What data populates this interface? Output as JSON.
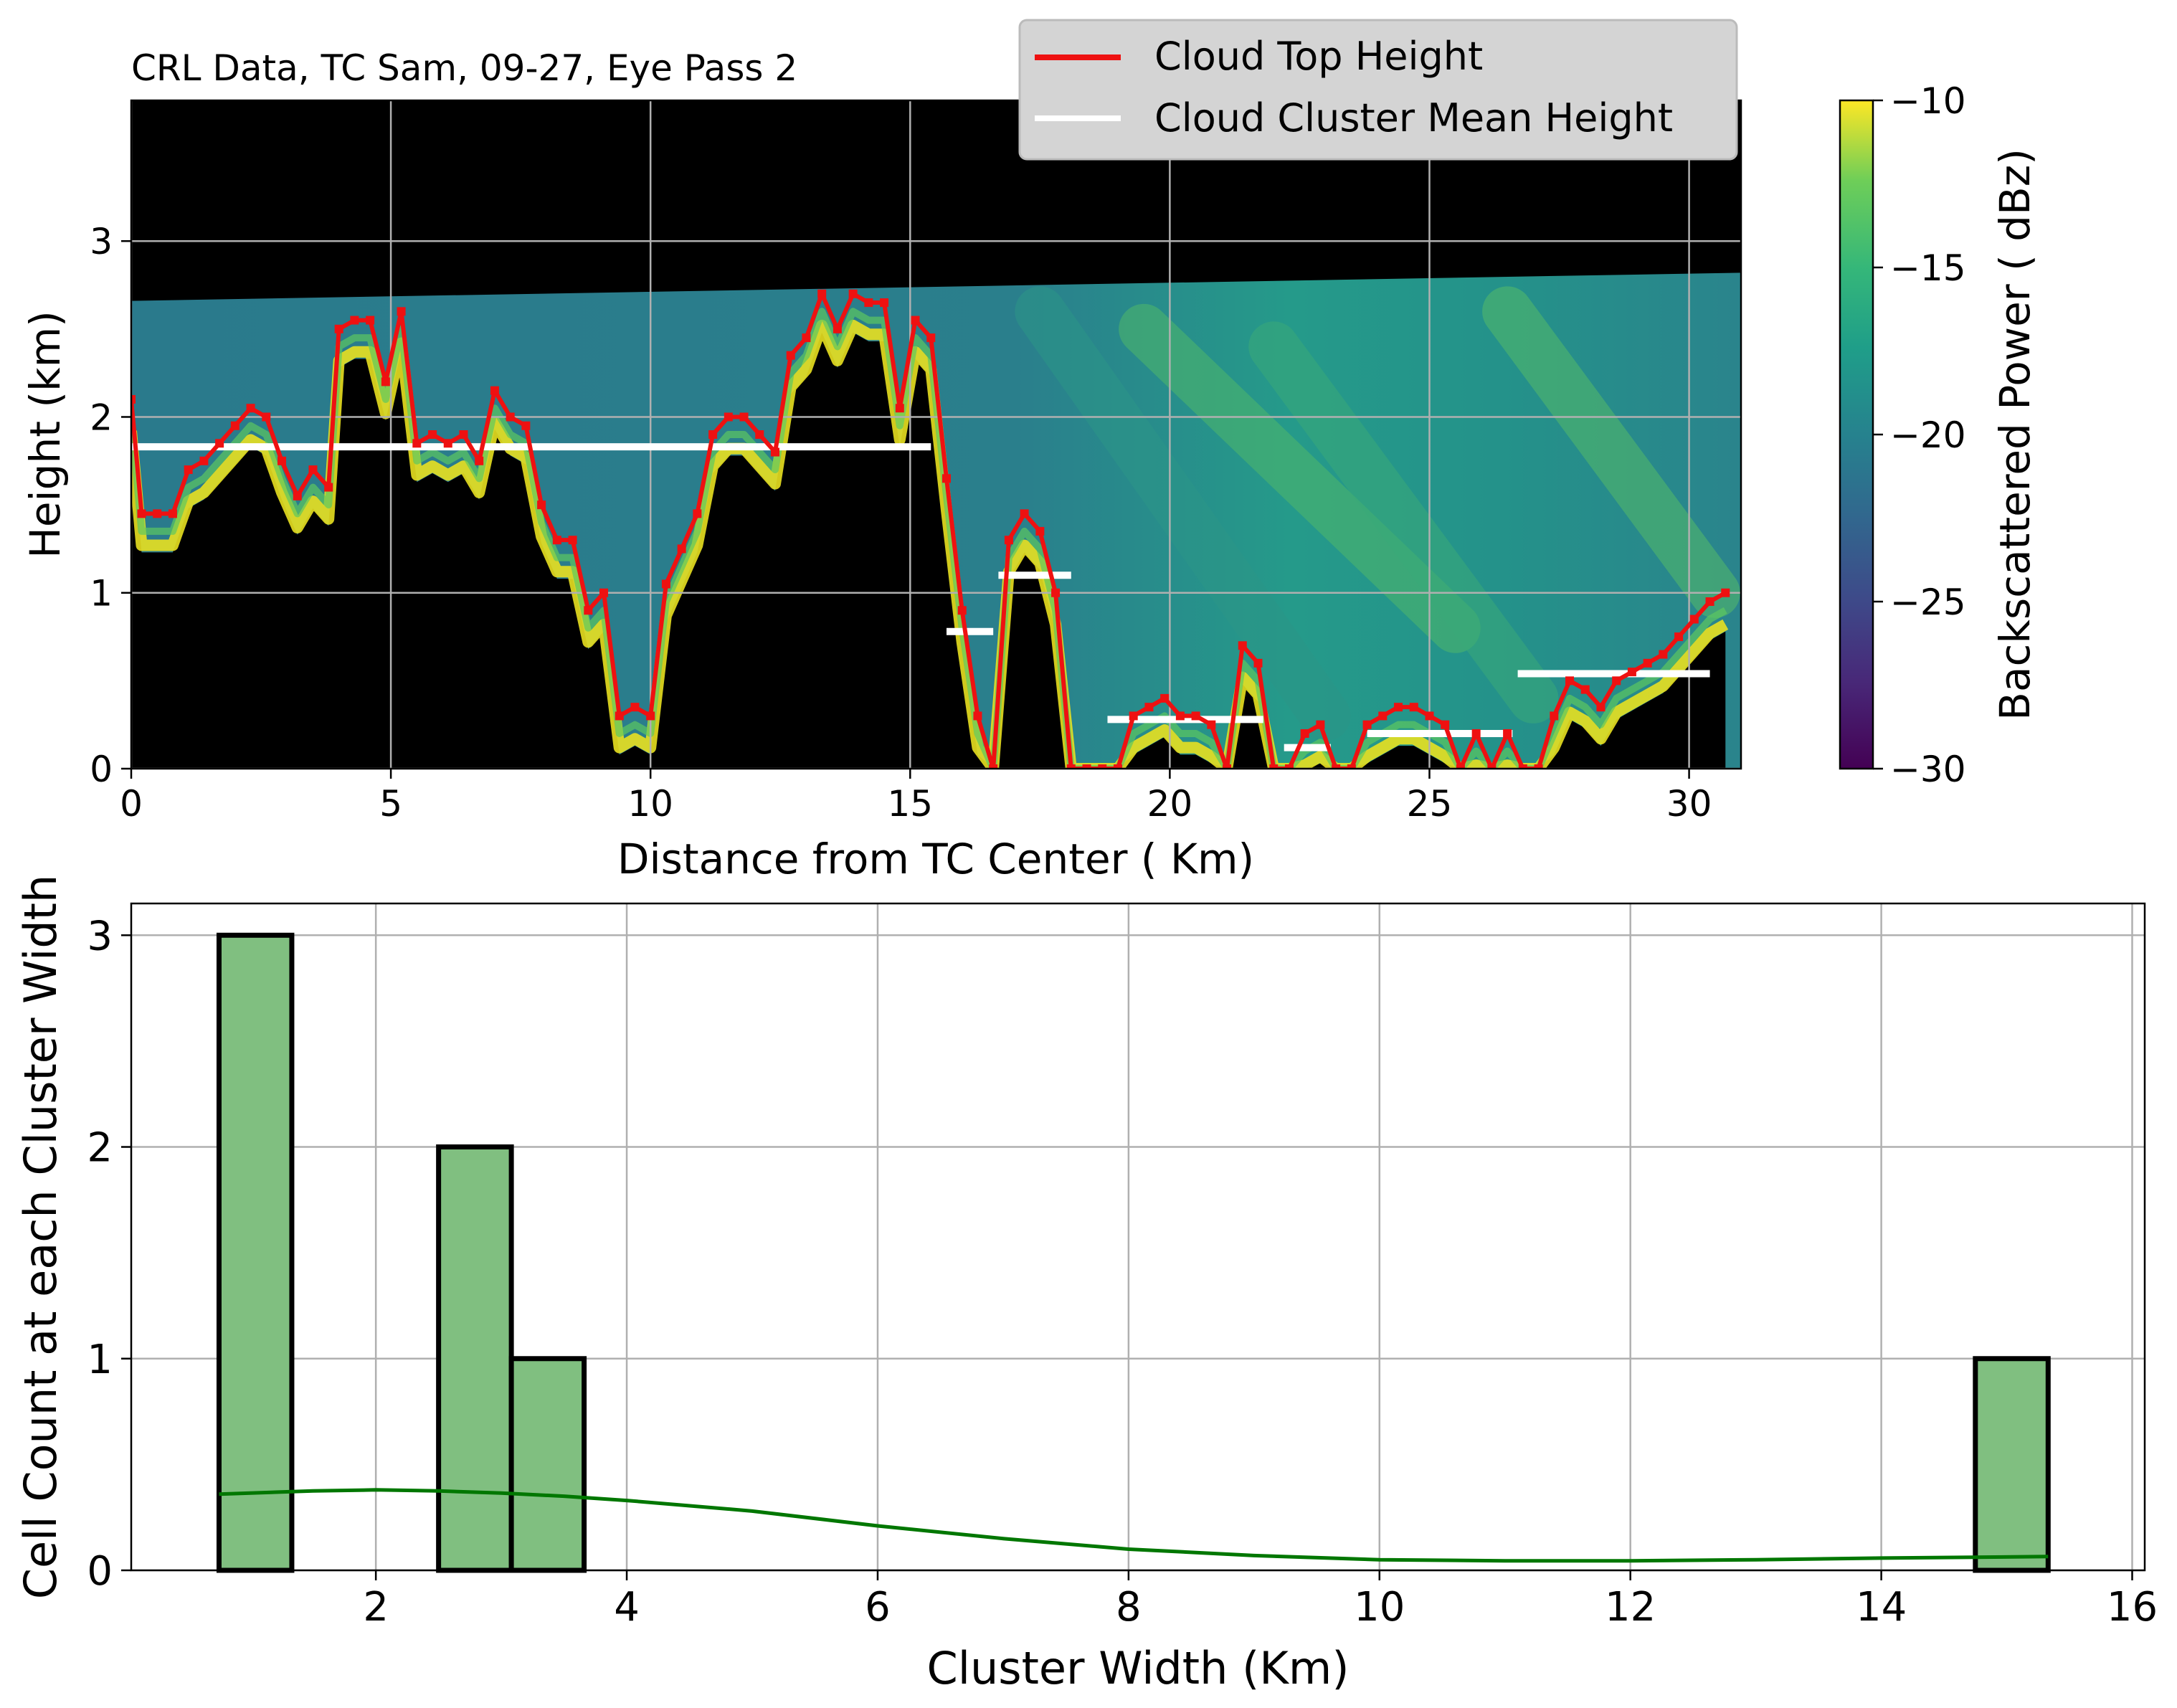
{
  "chart_data": [
    {
      "type": "heatmap",
      "title": "CRL Data, TC Sam, 09-27, Eye Pass 2",
      "xlabel": "Distance from TC Center ( Km)",
      "ylabel": "Height (km)",
      "xlim": [
        0,
        31
      ],
      "ylim": [
        0,
        3.8
      ],
      "xticks": [
        0,
        5,
        10,
        15,
        20,
        25,
        30
      ],
      "yticks": [
        0,
        1,
        2,
        3
      ],
      "grid": true,
      "legend_position": "top-center",
      "legend": [
        {
          "label": "Cloud Top Height",
          "color": "#ee1111"
        },
        {
          "label": "Cloud Cluster Mean Height",
          "color": "#ffffff"
        }
      ],
      "colorbar": {
        "label": "Backscattered Power ( dBz)",
        "range": [
          -30,
          -10
        ],
        "ticks": [
          -10,
          -15,
          -20,
          -25,
          -30
        ],
        "colormap": "viridis"
      },
      "top_boundary": {
        "x": [
          0,
          31
        ],
        "y": [
          2.66,
          2.82
        ]
      },
      "cloud_top_height": {
        "x": [
          0,
          0.2,
          0.5,
          0.8,
          1.1,
          1.4,
          1.7,
          2.0,
          2.3,
          2.6,
          2.9,
          3.2,
          3.5,
          3.8,
          4.0,
          4.3,
          4.6,
          4.9,
          5.2,
          5.5,
          5.8,
          6.1,
          6.4,
          6.7,
          7.0,
          7.3,
          7.6,
          7.9,
          8.2,
          8.5,
          8.8,
          9.1,
          9.4,
          9.7,
          10.0,
          10.3,
          10.6,
          10.9,
          11.2,
          11.5,
          11.8,
          12.1,
          12.4,
          12.7,
          13.0,
          13.3,
          13.6,
          13.9,
          14.2,
          14.5,
          14.8,
          15.1,
          15.4,
          15.7,
          16.0,
          16.3,
          16.6,
          16.9,
          17.2,
          17.5,
          17.8,
          18.1,
          18.4,
          18.7,
          19.0,
          19.3,
          19.6,
          19.9,
          20.2,
          20.5,
          20.8,
          21.1,
          21.4,
          21.7,
          22.0,
          22.3,
          22.6,
          22.9,
          23.2,
          23.5,
          23.8,
          24.1,
          24.4,
          24.7,
          25.0,
          25.3,
          25.6,
          25.9,
          26.2,
          26.5,
          26.8,
          27.1,
          27.4,
          27.7,
          28.0,
          28.3,
          28.6,
          28.9,
          29.2,
          29.5,
          29.8,
          30.1,
          30.4,
          30.7
        ],
        "y": [
          2.1,
          1.45,
          1.45,
          1.45,
          1.7,
          1.75,
          1.85,
          1.95,
          2.05,
          2.0,
          1.75,
          1.55,
          1.7,
          1.6,
          2.5,
          2.55,
          2.55,
          2.2,
          2.6,
          1.85,
          1.9,
          1.85,
          1.9,
          1.75,
          2.15,
          2.0,
          1.95,
          1.5,
          1.3,
          1.3,
          0.9,
          1.0,
          0.3,
          0.35,
          0.3,
          1.05,
          1.25,
          1.45,
          1.9,
          2.0,
          2.0,
          1.9,
          1.8,
          2.35,
          2.45,
          2.7,
          2.5,
          2.7,
          2.65,
          2.65,
          2.05,
          2.55,
          2.45,
          1.65,
          0.9,
          0.3,
          0.0,
          1.3,
          1.45,
          1.35,
          1.0,
          0.0,
          0.0,
          0.0,
          0.0,
          0.3,
          0.35,
          0.4,
          0.3,
          0.3,
          0.25,
          0.0,
          0.7,
          0.6,
          0.0,
          0.0,
          0.2,
          0.25,
          0.0,
          0.0,
          0.25,
          0.3,
          0.35,
          0.35,
          0.3,
          0.25,
          0.0,
          0.2,
          0.0,
          0.2,
          0.0,
          0.0,
          0.3,
          0.5,
          0.45,
          0.35,
          0.5,
          0.55,
          0.6,
          0.65,
          0.75,
          0.85,
          0.95,
          1.0
        ]
      },
      "cluster_mean_height": [
        {
          "x0": 0.0,
          "x1": 15.4,
          "y": 1.83
        },
        {
          "x0": 15.7,
          "x1": 16.6,
          "y": 0.78
        },
        {
          "x0": 16.7,
          "x1": 18.1,
          "y": 1.1
        },
        {
          "x0": 18.8,
          "x1": 21.8,
          "y": 0.28
        },
        {
          "x0": 22.2,
          "x1": 23.1,
          "y": 0.12
        },
        {
          "x0": 23.8,
          "x1": 26.6,
          "y": 0.2
        },
        {
          "x0": 26.7,
          "x1": 30.4,
          "y": 0.54
        }
      ]
    },
    {
      "type": "bar",
      "title": "",
      "xlabel": "Cluster Width (Km)",
      "ylabel": "Cell Count at each Cluster Width",
      "xlim": [
        0.05,
        16.1
      ],
      "ylim": [
        0,
        3.15
      ],
      "xticks": [
        2,
        4,
        6,
        8,
        10,
        12,
        14,
        16
      ],
      "yticks": [
        0,
        1,
        2,
        3
      ],
      "grid": true,
      "bar_color": "#80bf80",
      "kde_color": "#007700",
      "bins": [
        {
          "x0": 0.75,
          "x1": 1.33,
          "count": 3
        },
        {
          "x0": 2.5,
          "x1": 3.08,
          "count": 2
        },
        {
          "x0": 3.08,
          "x1": 3.66,
          "count": 1
        },
        {
          "x0": 14.75,
          "x1": 15.33,
          "count": 1
        }
      ],
      "kde": {
        "x": [
          0.75,
          1.5,
          2.0,
          2.5,
          3.0,
          3.5,
          4.0,
          5.0,
          6.0,
          7.0,
          8.0,
          9.0,
          10.0,
          11.0,
          12.0,
          13.0,
          14.0,
          15.33
        ],
        "y": [
          0.36,
          0.375,
          0.38,
          0.375,
          0.365,
          0.35,
          0.33,
          0.28,
          0.21,
          0.15,
          0.1,
          0.07,
          0.05,
          0.045,
          0.045,
          0.05,
          0.058,
          0.065
        ]
      }
    }
  ]
}
